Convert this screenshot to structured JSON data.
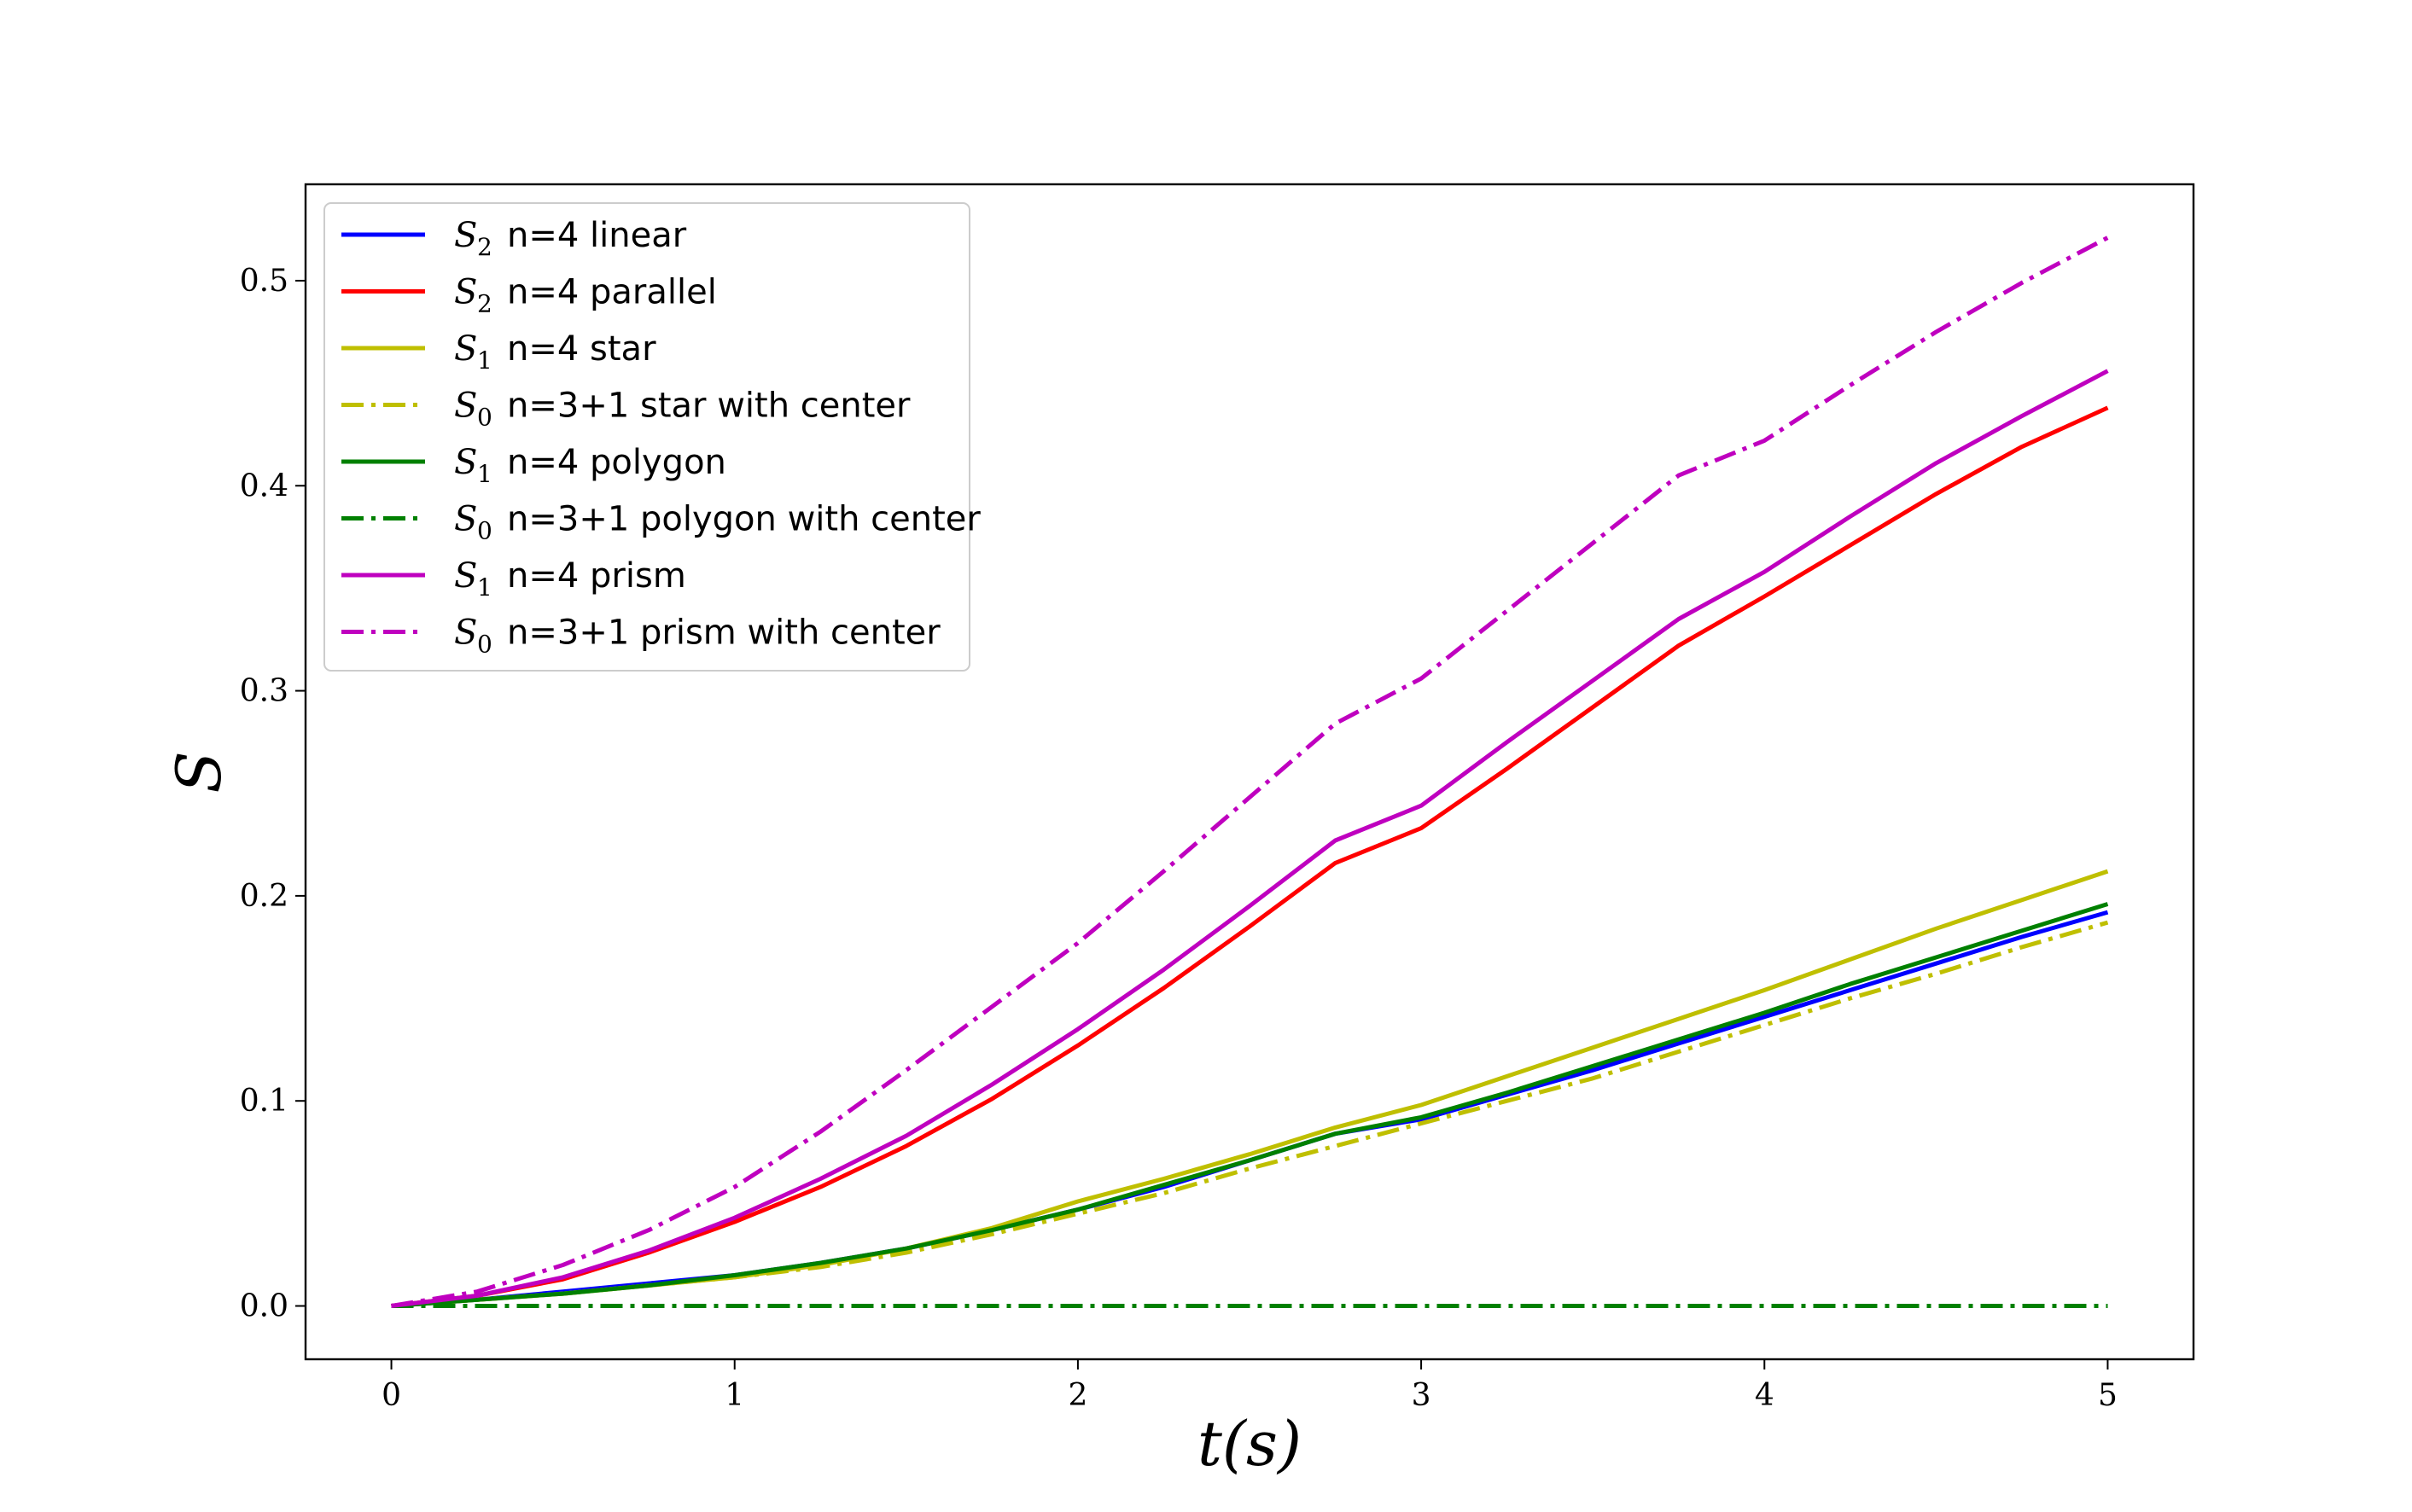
{
  "chart_data": {
    "type": "line",
    "xlabel": "t(s)",
    "ylabel": "S",
    "xlim": [
      -0.25,
      5.25
    ],
    "ylim": [
      -0.026,
      0.547
    ],
    "xticks": [
      0,
      1,
      2,
      3,
      4,
      5
    ],
    "xtick_labels": [
      "0",
      "1",
      "2",
      "3",
      "4",
      "5"
    ],
    "yticks": [
      0.0,
      0.1,
      0.2,
      0.3,
      0.4,
      0.5
    ],
    "ytick_labels": [
      "0.0",
      "0.1",
      "0.2",
      "0.3",
      "0.4",
      "0.5"
    ],
    "grid": false,
    "legend_position": "top-left",
    "x": [
      0,
      0.25,
      0.5,
      0.75,
      1.0,
      1.25,
      1.5,
      1.75,
      2.0,
      2.25,
      2.5,
      2.75,
      3.0,
      3.25,
      3.5,
      3.75,
      4.0,
      4.25,
      4.5,
      4.75,
      5.0
    ],
    "series": [
      {
        "sym": "S",
        "sub": "2",
        "label": "n=4 linear",
        "color": "#0000ff",
        "dash": "solid",
        "values": [
          0.0,
          0.003,
          0.007,
          0.011,
          0.015,
          0.021,
          0.028,
          0.037,
          0.047,
          0.058,
          0.071,
          0.084,
          0.091,
          0.103,
          0.115,
          0.128,
          0.141,
          0.154,
          0.167,
          0.18,
          0.192
        ]
      },
      {
        "sym": "S",
        "sub": "2",
        "label": "n=4 parallel",
        "color": "#ff0000",
        "dash": "solid",
        "values": [
          0.0,
          0.005,
          0.013,
          0.026,
          0.041,
          0.058,
          0.078,
          0.101,
          0.127,
          0.155,
          0.185,
          0.216,
          0.233,
          0.262,
          0.292,
          0.322,
          0.346,
          0.371,
          0.396,
          0.419,
          0.438
        ]
      },
      {
        "sym": "S",
        "sub": "1",
        "label": "n=4 star",
        "color": "#bfbf00",
        "dash": "solid",
        "values": [
          0.0,
          0.003,
          0.006,
          0.01,
          0.014,
          0.02,
          0.028,
          0.038,
          0.051,
          0.062,
          0.074,
          0.087,
          0.098,
          0.112,
          0.126,
          0.14,
          0.154,
          0.169,
          0.184,
          0.198,
          0.212
        ]
      },
      {
        "sym": "S",
        "sub": "0",
        "label": "n=3+1 star with center",
        "color": "#bfbf00",
        "dash": "dashdot",
        "values": [
          0.0,
          0.003,
          0.006,
          0.01,
          0.014,
          0.019,
          0.026,
          0.035,
          0.045,
          0.055,
          0.067,
          0.078,
          0.089,
          0.1,
          0.111,
          0.124,
          0.137,
          0.15,
          0.162,
          0.175,
          0.187
        ]
      },
      {
        "sym": "S",
        "sub": "1",
        "label": "n=4 polygon",
        "color": "#008000",
        "dash": "solid",
        "values": [
          0.0,
          0.003,
          0.006,
          0.01,
          0.015,
          0.021,
          0.028,
          0.037,
          0.047,
          0.059,
          0.071,
          0.084,
          0.092,
          0.104,
          0.117,
          0.13,
          0.143,
          0.157,
          0.17,
          0.183,
          0.196
        ]
      },
      {
        "sym": "S",
        "sub": "0",
        "label": "n=3+1 polygon with center",
        "color": "#008000",
        "dash": "dashdot",
        "values": [
          0.0,
          0.0,
          0.0,
          0.0,
          0.0,
          0.0,
          0.0,
          0.0,
          0.0,
          0.0,
          0.0,
          0.0,
          0.0,
          0.0,
          0.0,
          0.0,
          0.0,
          0.0,
          0.0,
          0.0,
          0.0
        ]
      },
      {
        "sym": "S",
        "sub": "1",
        "label": "n=4 prism",
        "color": "#bf00bf",
        "dash": "solid",
        "values": [
          0.0,
          0.005,
          0.014,
          0.027,
          0.043,
          0.062,
          0.083,
          0.108,
          0.135,
          0.164,
          0.195,
          0.227,
          0.244,
          0.275,
          0.305,
          0.335,
          0.358,
          0.385,
          0.411,
          0.434,
          0.456
        ]
      },
      {
        "sym": "S",
        "sub": "0",
        "label": "n=3+1 prism with center",
        "color": "#bf00bf",
        "dash": "dashdot",
        "values": [
          0.0,
          0.007,
          0.02,
          0.037,
          0.058,
          0.085,
          0.115,
          0.146,
          0.177,
          0.212,
          0.248,
          0.284,
          0.306,
          0.339,
          0.372,
          0.405,
          0.422,
          0.449,
          0.475,
          0.499,
          0.521
        ]
      }
    ]
  }
}
